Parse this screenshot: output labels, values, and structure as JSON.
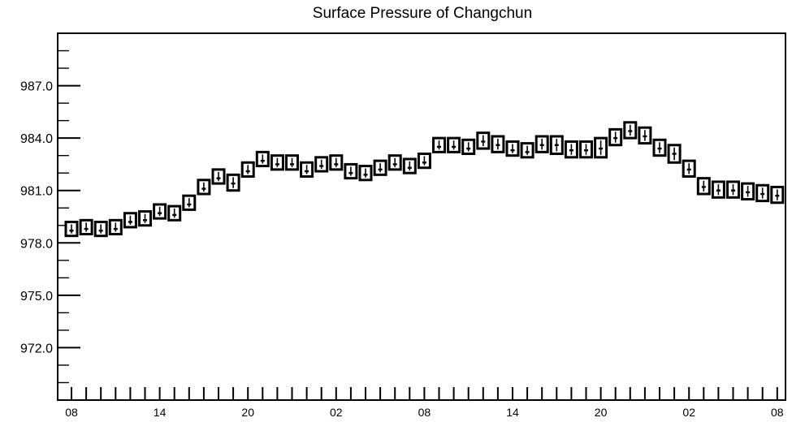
{
  "chart_data": {
    "type": "box",
    "title": "Surface Pressure of Changchun",
    "xlabel": "",
    "ylabel": "",
    "ylim": [
      969.0,
      990.0
    ],
    "y_ticks": [
      972.0,
      975.0,
      978.0,
      981.0,
      984.0,
      987.0
    ],
    "y_tick_labels": [
      "972.0",
      "975.0",
      "978.0",
      "981.0",
      "984.0",
      "987.0"
    ],
    "x_step_hours": 3,
    "x_tick_labels": [
      "08",
      "14",
      "20",
      "02",
      "08",
      "14",
      "20",
      "02",
      "08"
    ],
    "series": [
      {
        "values": [
          978.7,
          978.8,
          978.7,
          978.8,
          979.2,
          979.3,
          979.7,
          979.6,
          980.2,
          981.1,
          981.7,
          981.4,
          982.1,
          982.7,
          982.5,
          982.5,
          982.1,
          982.4,
          982.5,
          982.0,
          981.9,
          982.2,
          982.5,
          982.3,
          982.6,
          983.5,
          983.5,
          983.4,
          983.8,
          983.6,
          983.3,
          983.2,
          983.6,
          983.6,
          983.3,
          983.3,
          983.4,
          984.0,
          984.4,
          984.1,
          983.4,
          983.1,
          982.2,
          981.2,
          981.0,
          981.0,
          980.9,
          980.8,
          980.7
        ],
        "box_low": [
          978.4,
          978.5,
          978.4,
          978.5,
          978.9,
          979.0,
          979.4,
          979.3,
          979.9,
          980.8,
          981.4,
          981.0,
          981.8,
          982.4,
          982.2,
          982.2,
          981.8,
          982.1,
          982.2,
          981.7,
          981.6,
          981.9,
          982.2,
          982.0,
          982.3,
          983.2,
          983.2,
          983.1,
          983.4,
          983.2,
          983.0,
          982.9,
          983.2,
          983.1,
          982.9,
          982.9,
          982.9,
          983.6,
          984.0,
          983.7,
          983.0,
          982.6,
          981.8,
          980.8,
          980.6,
          980.6,
          980.5,
          980.4,
          980.3
        ],
        "box_high": [
          979.2,
          979.3,
          979.2,
          979.3,
          979.7,
          979.8,
          980.2,
          980.1,
          980.7,
          981.6,
          982.2,
          981.9,
          982.6,
          983.2,
          983.0,
          983.0,
          982.6,
          982.9,
          983.0,
          982.5,
          982.4,
          982.7,
          983.0,
          982.8,
          983.1,
          984.0,
          984.0,
          983.9,
          984.3,
          984.1,
          983.8,
          983.7,
          984.1,
          984.1,
          983.8,
          983.8,
          984.0,
          984.5,
          984.9,
          984.6,
          983.9,
          983.6,
          982.7,
          981.7,
          981.5,
          981.5,
          981.4,
          981.3,
          981.2
        ]
      }
    ]
  }
}
